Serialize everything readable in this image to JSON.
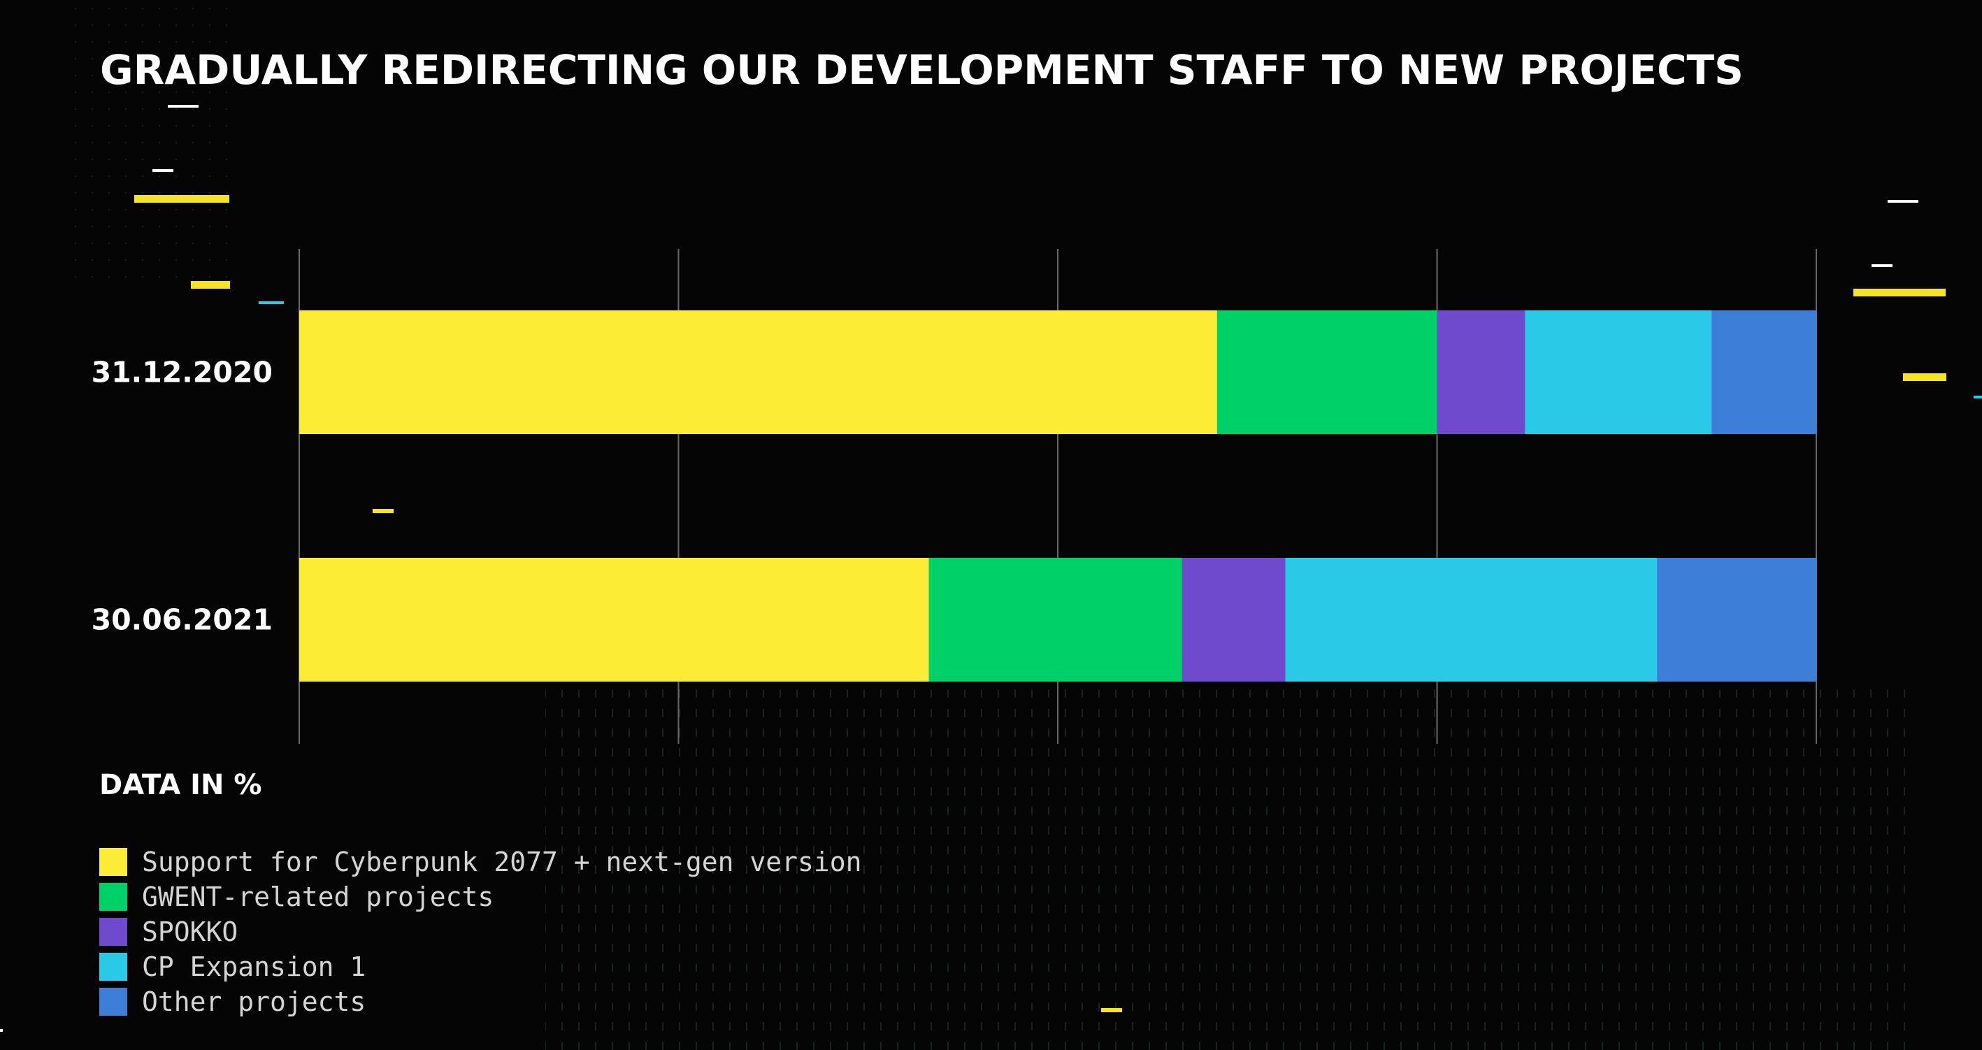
{
  "colors": {
    "background": "#050505",
    "support_cyberpunk": "#fcec36",
    "gwent": "#00d068",
    "spokko": "#6f4acc",
    "cp_expansion": "#2bc9e8",
    "other": "#3d7ed8",
    "gridline": "#6a6a6a",
    "accent_yellow": "#f6e227",
    "accent_cyan": "#2bc9e8"
  },
  "chart_data": {
    "type": "bar",
    "orientation": "horizontal",
    "stacked": true,
    "title": "GRADUALLY REDIRECTING OUR DEVELOPMENT STAFF TO NEW PROJECTS",
    "note": "DATA IN %",
    "xlim": [
      0,
      100
    ],
    "grid": true,
    "legend_position": "bottom-left",
    "categories": [
      "31.12.2020",
      "30.06.2021"
    ],
    "series": [
      {
        "name": "Support for Cyberpunk 2077 + next-gen version",
        "color": "#fcec36",
        "values": [
          60.5,
          41.5
        ]
      },
      {
        "name": "GWENT-related projects",
        "color": "#00d068",
        "values": [
          14.5,
          16.7
        ]
      },
      {
        "name": "SPOKKO",
        "color": "#6f4acc",
        "values": [
          5.8,
          6.8
        ]
      },
      {
        "name": "CP Expansion 1",
        "color": "#2bc9e8",
        "values": [
          12.3,
          24.5
        ]
      },
      {
        "name": "Other projects",
        "color": "#3d7ed8",
        "values": [
          6.9,
          10.5
        ]
      }
    ]
  }
}
